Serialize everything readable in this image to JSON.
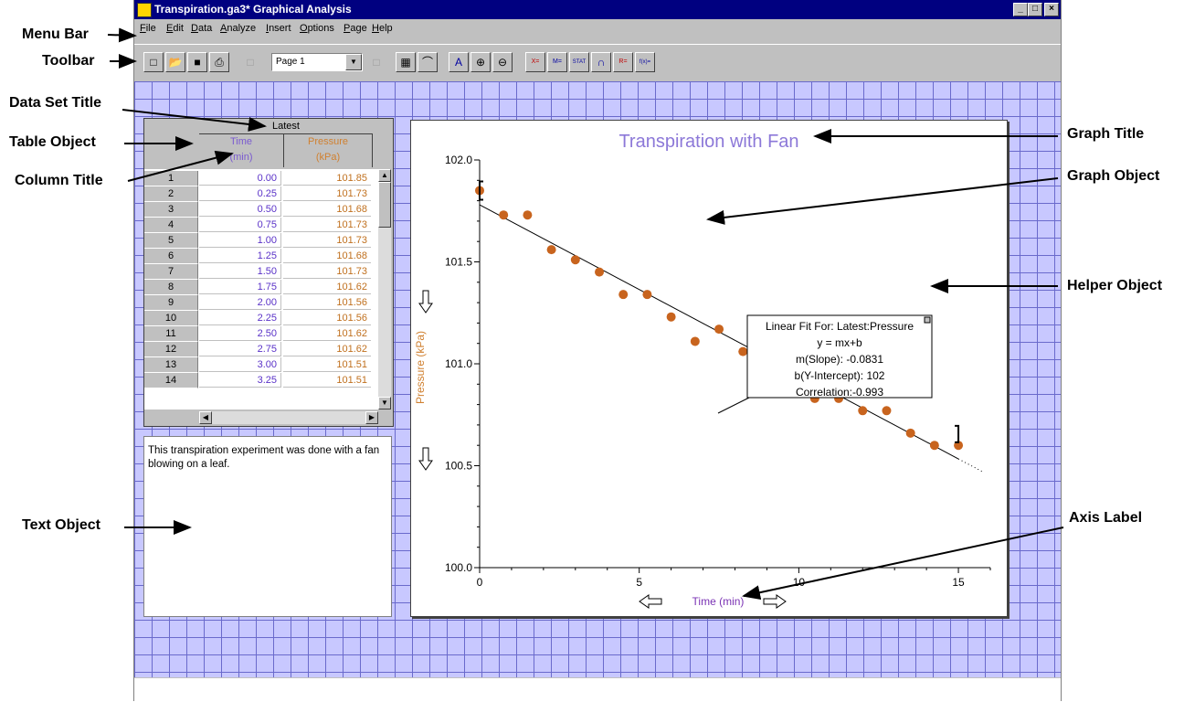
{
  "window": {
    "title": "Transpiration.ga3* Graphical Analysis",
    "controls": [
      "_",
      "□",
      "×"
    ]
  },
  "menu": [
    "File",
    "Edit",
    "Data",
    "Analyze",
    "Insert",
    "Options",
    "Page",
    "Help"
  ],
  "toolbar": {
    "page_select": "Page 1",
    "icons_left": [
      "new-page-icon",
      "open-folder-icon",
      "save-disk-icon",
      "print-icon",
      "prev-page-icon"
    ],
    "icons_right": [
      "next-page-icon",
      "table-view-icon",
      "graph-view-icon",
      "autoscale-icon",
      "zoom-in-icon",
      "zoom-out-icon",
      "examine-icon",
      "tangent-icon",
      "statistics-icon",
      "integral-icon",
      "linear-regression-icon",
      "curve-fit-icon"
    ],
    "icon_text": [
      "X=",
      "M=",
      "STAT",
      "",
      "R=",
      "f(x)="
    ]
  },
  "table": {
    "dataset_title": "Latest",
    "columns": [
      {
        "title": "Time",
        "unit": "(min)"
      },
      {
        "title": "Pressure",
        "unit": "(kPa)"
      }
    ],
    "rows": [
      [
        "1",
        "0.00",
        "101.85"
      ],
      [
        "2",
        "0.25",
        "101.73"
      ],
      [
        "3",
        "0.50",
        "101.68"
      ],
      [
        "4",
        "0.75",
        "101.73"
      ],
      [
        "5",
        "1.00",
        "101.73"
      ],
      [
        "6",
        "1.25",
        "101.68"
      ],
      [
        "7",
        "1.50",
        "101.73"
      ],
      [
        "8",
        "1.75",
        "101.62"
      ],
      [
        "9",
        "2.00",
        "101.56"
      ],
      [
        "10",
        "2.25",
        "101.56"
      ],
      [
        "11",
        "2.50",
        "101.62"
      ],
      [
        "12",
        "2.75",
        "101.62"
      ],
      [
        "13",
        "3.00",
        "101.51"
      ],
      [
        "14",
        "3.25",
        "101.51"
      ]
    ]
  },
  "text_object": {
    "text": "This transpiration experiment was done with a fan blowing on a leaf."
  },
  "graph": {
    "title": "Transpiration with Fan",
    "ylabel": "Pressure (kPa)",
    "xlabel": "Time (min)",
    "helper": {
      "line1": "Linear Fit For:  Latest:Pressure",
      "line2": "y = mx+b",
      "line3": "m(Slope): -0.0831",
      "line4": "b(Y-Intercept): 102",
      "line5": "Correlation:-0.993"
    }
  },
  "chart_data": {
    "type": "scatter",
    "title": "Transpiration with Fan",
    "xlabel": "Time (min)",
    "ylabel": "Pressure (kPa)",
    "xlim": [
      0,
      16
    ],
    "ylim": [
      100.0,
      102.0
    ],
    "xticks": [
      "0",
      "5",
      "10",
      "15"
    ],
    "yticks": [
      "100.0",
      "100.5",
      "101.0",
      "101.5",
      "102.0"
    ],
    "series": [
      {
        "color": "#c8641e",
        "x": [
          0,
          0.75,
          1.5,
          2.25,
          3.0,
          3.75,
          4.5,
          5.25,
          6.0,
          6.75,
          7.5,
          8.25,
          9.0,
          9.75,
          10.5,
          11.25,
          12.0,
          12.75,
          13.5,
          14.25,
          15.0
        ],
        "y": [
          101.85,
          101.73,
          101.73,
          101.56,
          101.51,
          101.45,
          101.34,
          101.34,
          101.23,
          101.11,
          101.17,
          101.06,
          101.0,
          100.94,
          100.83,
          100.83,
          100.77,
          100.77,
          100.66,
          100.6,
          100.6
        ]
      }
    ],
    "fit": {
      "m": -0.0831,
      "b": 101.78
    }
  },
  "annotations": {
    "menu_bar": "Menu Bar",
    "toolbar": "Toolbar",
    "data_set_title": "Data Set Title",
    "table_object": "Table Object",
    "column_title": "Column Title",
    "text_object": "Text Object",
    "graph_title": "Graph Title",
    "graph_object": "Graph Object",
    "helper_object": "Helper Object",
    "axis_label": "Axis Label"
  }
}
